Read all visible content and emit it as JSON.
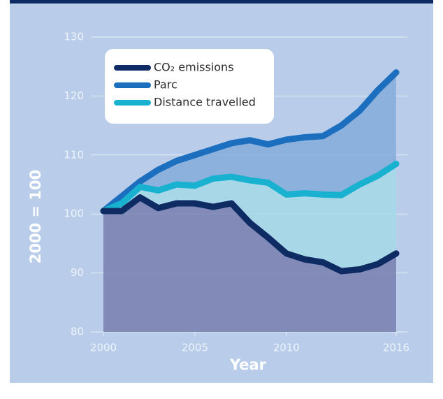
{
  "chart_data": {
    "type": "line",
    "x": [
      2000,
      2001,
      2002,
      2003,
      2004,
      2005,
      2006,
      2007,
      2008,
      2009,
      2010,
      2011,
      2012,
      2013,
      2014,
      2015,
      2016
    ],
    "series": [
      {
        "name": "CO₂ emissions",
        "color": "#0e2b63",
        "fill": "#7c84b2",
        "values": [
          100.5,
          100.5,
          102.8,
          101,
          101.8,
          101.8,
          101.2,
          101.8,
          98.5,
          96,
          93.3,
          92.3,
          91.8,
          90.3,
          90.6,
          91.5,
          93.3
        ]
      },
      {
        "name": "Parc",
        "color": "#1b6fbe",
        "fill": "#88aedc",
        "values": [
          100.5,
          103,
          105.5,
          107.5,
          109,
          110,
          111,
          112,
          112.5,
          111.8,
          112.6,
          113,
          113.2,
          115,
          117.5,
          121,
          124
        ]
      },
      {
        "name": "Distance travelled",
        "color": "#19b1d0",
        "fill": "#a6d9e8",
        "values": [
          100.5,
          101.8,
          104.6,
          104,
          105,
          104.8,
          106,
          106.3,
          105.7,
          105.3,
          103.3,
          103.5,
          103.3,
          103.2,
          105,
          106.5,
          108.5
        ]
      }
    ],
    "xlabel": "Year",
    "ylabel": "2000 = 100",
    "xlim": [
      2000,
      2016
    ],
    "xticks": [
      2000,
      2005,
      2010,
      2016
    ],
    "ylim": [
      80,
      130
    ],
    "yticks": [
      80,
      90,
      100,
      110,
      120,
      130
    ],
    "grid": true,
    "legend": "upper left"
  }
}
